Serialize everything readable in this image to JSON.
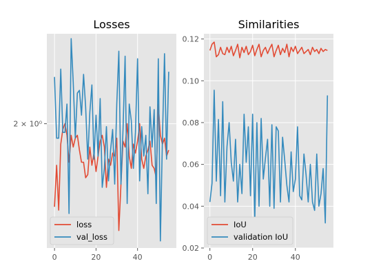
{
  "colors": {
    "train": "#E24A33",
    "validation": "#348ABD",
    "panel_bg": "#E5E5E5",
    "grid": "#FFFFFF",
    "legend_bg": "#E5E5E5"
  },
  "chart_data": [
    {
      "type": "line",
      "title": "Losses",
      "xlabel": "",
      "ylabel": "",
      "yscale": "log",
      "xlim": [
        -3.7,
        58.7
      ],
      "ylim": [
        1.61,
        2.34
      ],
      "xticks": [
        0,
        20,
        40
      ],
      "xtick_labels": [
        "0",
        "20",
        "40"
      ],
      "yticks": [
        2.0
      ],
      "ytick_labels": [
        "2 × 10⁰"
      ],
      "grid": true,
      "legend": "lower-left",
      "x": [
        0,
        1,
        2,
        3,
        4,
        5,
        6,
        7,
        8,
        9,
        10,
        11,
        12,
        13,
        14,
        15,
        16,
        17,
        18,
        19,
        20,
        21,
        22,
        23,
        24,
        25,
        26,
        27,
        28,
        29,
        30,
        31,
        32,
        33,
        34,
        35,
        36,
        37,
        38,
        39,
        40,
        41,
        42,
        43,
        44,
        45,
        46,
        47,
        48,
        49,
        50,
        51,
        52,
        53,
        54,
        55
      ],
      "series": [
        {
          "name": "loss",
          "color": "#E24A33",
          "values": [
            1.73,
            1.86,
            1.72,
            1.93,
            1.98,
            2.0,
            1.96,
            1.87,
            1.96,
            1.92,
            1.95,
            1.96,
            1.91,
            1.87,
            1.87,
            1.82,
            1.83,
            1.92,
            1.86,
            1.9,
            1.84,
            1.89,
            1.94,
            1.96,
            1.92,
            1.79,
            1.88,
            1.86,
            1.9,
            1.89,
            1.95,
            1.66,
            1.8,
            1.94,
            1.92,
            2.0,
            1.89,
            1.85,
            1.93,
            1.9,
            1.94,
            2.0,
            1.88,
            1.85,
            1.89,
            1.91,
            1.94,
            1.86,
            1.85,
            1.82,
            2.07,
            1.96,
            1.93,
            1.95,
            1.89,
            1.91
          ]
        },
        {
          "name": "val_loss",
          "color": "#348ABD",
          "values": [
            2.17,
            1.95,
            1.95,
            2.2,
            1.97,
            1.97,
            2.07,
            1.71,
            2.32,
            2.15,
            1.95,
            2.11,
            2.12,
            2.03,
            2.18,
            2.06,
            1.88,
            2.04,
            2.14,
            1.88,
            2.03,
            1.89,
            2.09,
            1.79,
            1.85,
            1.99,
            1.81,
            1.91,
            1.98,
            1.8,
            2.07,
            2.27,
            1.8,
            1.98,
            2.25,
            1.74,
            2.07,
            2.01,
            1.85,
            1.97,
            2.24,
            1.81,
            1.99,
            1.89,
            1.96,
            1.77,
            2.06,
            1.92,
            2.05,
            1.74,
            2.24,
            1.63,
            1.95,
            2.26,
            1.88,
            2.19
          ]
        }
      ]
    },
    {
      "type": "line",
      "title": "Similarities",
      "xlabel": "",
      "ylabel": "",
      "xlim": [
        -2.8,
        57.8
      ],
      "ylim": [
        0.02,
        0.1225
      ],
      "xticks": [
        0,
        20,
        40
      ],
      "xtick_labels": [
        "0",
        "20",
        "40"
      ],
      "yticks": [
        0.02,
        0.04,
        0.06,
        0.08,
        0.1,
        0.12
      ],
      "ytick_labels": [
        "0.02",
        "0.04",
        "0.06",
        "0.08",
        "0.10",
        "0.12"
      ],
      "grid": true,
      "legend": "lower-left",
      "x": [
        0,
        1,
        2,
        3,
        4,
        5,
        6,
        7,
        8,
        9,
        10,
        11,
        12,
        13,
        14,
        15,
        16,
        17,
        18,
        19,
        20,
        21,
        22,
        23,
        24,
        25,
        26,
        27,
        28,
        29,
        30,
        31,
        32,
        33,
        34,
        35,
        36,
        37,
        38,
        39,
        40,
        41,
        42,
        43,
        44,
        45,
        46,
        47,
        48,
        49,
        50,
        51,
        52,
        53,
        54,
        55
      ],
      "series": [
        {
          "name": "IoU",
          "color": "#E24A33",
          "values": [
            0.1145,
            0.1175,
            0.1185,
            0.1115,
            0.1125,
            0.116,
            0.113,
            0.1125,
            0.116,
            0.1135,
            0.1165,
            0.112,
            0.1145,
            0.1175,
            0.111,
            0.116,
            0.1135,
            0.1165,
            0.1125,
            0.114,
            0.117,
            0.112,
            0.115,
            0.1175,
            0.1115,
            0.1145,
            0.116,
            0.113,
            0.1155,
            0.1175,
            0.1115,
            0.1145,
            0.117,
            0.1125,
            0.1155,
            0.1135,
            0.1175,
            0.1115,
            0.116,
            0.114,
            0.1165,
            0.113,
            0.1145,
            0.116,
            0.113,
            0.114,
            0.115,
            0.1125,
            0.116,
            0.114,
            0.115,
            0.113,
            0.1155,
            0.114,
            0.115,
            0.1145
          ]
        },
        {
          "name": "validation IoU",
          "color": "#348ABD",
          "values": [
            0.042,
            0.051,
            0.0955,
            0.052,
            0.0815,
            0.045,
            0.09,
            0.042,
            0.0685,
            0.08,
            0.061,
            0.052,
            0.072,
            0.042,
            0.06,
            0.046,
            0.084,
            0.061,
            0.078,
            0.045,
            0.084,
            0.033,
            0.08,
            0.04,
            0.082,
            0.053,
            0.063,
            0.072,
            0.04,
            0.079,
            0.039,
            0.078,
            0.076,
            0.042,
            0.073,
            0.062,
            0.05,
            0.042,
            0.066,
            0.047,
            0.053,
            0.078,
            0.045,
            0.043,
            0.065,
            0.055,
            0.042,
            0.06,
            0.042,
            0.038,
            0.065,
            0.04,
            0.046,
            0.058,
            0.032,
            0.093
          ]
        }
      ]
    }
  ]
}
